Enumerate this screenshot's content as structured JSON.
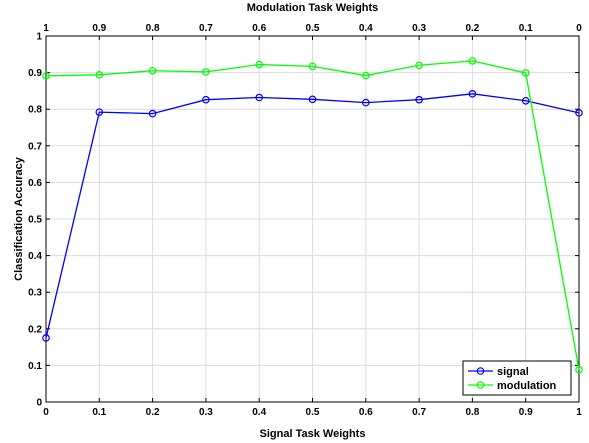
{
  "chart_data": {
    "type": "line",
    "title": "",
    "xlabel": "Signal Task Weights",
    "x2label": "Modulation Task Weights",
    "ylabel": "Classification Accuracy",
    "x": [
      0,
      0.1,
      0.2,
      0.3,
      0.4,
      0.5,
      0.6,
      0.7,
      0.8,
      0.9,
      1
    ],
    "xlim": [
      0,
      1
    ],
    "ylim": [
      0,
      1
    ],
    "x_ticks": [
      "0",
      "0.1",
      "0.2",
      "0.3",
      "0.4",
      "0.5",
      "0.6",
      "0.7",
      "0.8",
      "0.9",
      "1"
    ],
    "x2_ticks": [
      "1",
      "0.9",
      "0.8",
      "0.7",
      "0.6",
      "0.5",
      "0.4",
      "0.3",
      "0.2",
      "0.1",
      "0"
    ],
    "y_ticks": [
      "0",
      "0.1",
      "0.2",
      "0.3",
      "0.4",
      "0.5",
      "0.6",
      "0.7",
      "0.8",
      "0.9",
      "1"
    ],
    "grid": true,
    "legend_position": "bottom-right",
    "series": [
      {
        "name": "signal",
        "color": "#0000ff",
        "marker": "circle",
        "values": [
          0.175,
          0.792,
          0.788,
          0.826,
          0.832,
          0.827,
          0.818,
          0.826,
          0.842,
          0.823,
          0.79
        ]
      },
      {
        "name": "modulation",
        "color": "#00ff00",
        "marker": "circle",
        "values": [
          0.891,
          0.894,
          0.905,
          0.902,
          0.922,
          0.917,
          0.892,
          0.92,
          0.932,
          0.899,
          0.088
        ]
      }
    ]
  }
}
